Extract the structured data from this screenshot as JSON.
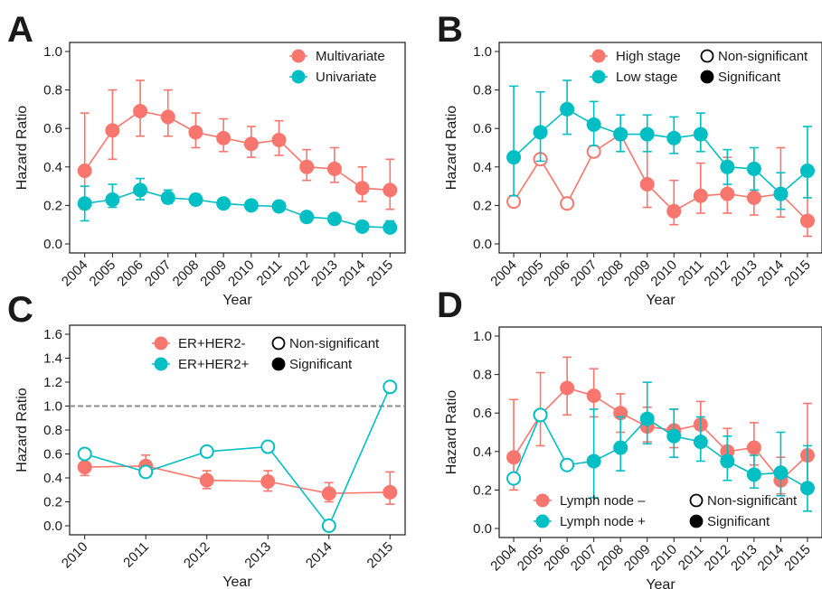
{
  "chart_data": [
    {
      "panel": "A",
      "type": "line",
      "xlabel": "Year",
      "ylabel": "Hazard Ratio",
      "ylim": [
        0.0,
        1.0
      ],
      "yticks": [
        "0.0",
        "0.2",
        "0.4",
        "0.6",
        "0.8",
        "1.0"
      ],
      "categories": [
        "2004",
        "2005",
        "2006",
        "2007",
        "2008",
        "2009",
        "2010",
        "2011",
        "2012",
        "2013",
        "2014",
        "2015"
      ],
      "legend": {
        "placement": "top-right",
        "series": [
          "Multivariate",
          "Univariate"
        ],
        "markers": []
      },
      "series": [
        {
          "name": "Multivariate",
          "color": "#F8766D",
          "values": [
            0.38,
            0.59,
            0.69,
            0.66,
            0.58,
            0.55,
            0.52,
            0.54,
            0.4,
            0.39,
            0.29,
            0.28
          ],
          "lower": [
            0.18,
            0.44,
            0.56,
            0.56,
            0.5,
            0.48,
            0.45,
            0.46,
            0.33,
            0.32,
            0.22,
            0.18
          ],
          "upper": [
            0.68,
            0.8,
            0.85,
            0.8,
            0.68,
            0.65,
            0.61,
            0.64,
            0.49,
            0.5,
            0.4,
            0.44
          ],
          "significant": [
            true,
            true,
            true,
            true,
            true,
            true,
            true,
            true,
            true,
            true,
            true,
            true
          ]
        },
        {
          "name": "Univariate",
          "color": "#00BFC4",
          "values": [
            0.21,
            0.23,
            0.28,
            0.24,
            0.23,
            0.21,
            0.2,
            0.195,
            0.14,
            0.13,
            0.09,
            0.085
          ],
          "lower": [
            0.12,
            0.19,
            0.23,
            0.21,
            0.21,
            0.19,
            0.18,
            0.175,
            0.12,
            0.11,
            0.07,
            0.06
          ],
          "upper": [
            0.3,
            0.31,
            0.34,
            0.28,
            0.26,
            0.23,
            0.22,
            0.215,
            0.16,
            0.15,
            0.11,
            0.12
          ],
          "significant": [
            true,
            true,
            true,
            true,
            true,
            true,
            true,
            true,
            true,
            true,
            true,
            true
          ]
        }
      ]
    },
    {
      "panel": "B",
      "type": "line",
      "xlabel": "Year",
      "ylabel": "Hazard Ratio",
      "ylim": [
        0.0,
        1.0
      ],
      "yticks": [
        "0.0",
        "0.2",
        "0.4",
        "0.6",
        "0.8",
        "1.0"
      ],
      "categories": [
        "2004",
        "2005",
        "2006",
        "2007",
        "2008",
        "2009",
        "2010",
        "2011",
        "2012",
        "2013",
        "2014",
        "2015"
      ],
      "legend": {
        "placement": "top-right",
        "series": [
          "High stage",
          "Low stage"
        ],
        "markers": [
          "Non-significant",
          "Significant"
        ]
      },
      "series": [
        {
          "name": "High stage",
          "color": "#F8766D",
          "values": [
            0.22,
            0.44,
            0.21,
            0.48,
            0.57,
            0.31,
            0.17,
            0.25,
            0.26,
            0.24,
            0.26,
            0.12
          ],
          "lower": [
            null,
            null,
            null,
            null,
            null,
            0.19,
            0.1,
            0.16,
            0.16,
            0.15,
            0.14,
            0.04
          ],
          "upper": [
            null,
            null,
            null,
            null,
            null,
            0.55,
            0.33,
            0.42,
            0.45,
            0.41,
            0.5,
            0.37
          ],
          "significant": [
            false,
            false,
            false,
            false,
            false,
            true,
            true,
            true,
            true,
            true,
            true,
            true
          ]
        },
        {
          "name": "Low stage",
          "color": "#00BFC4",
          "values": [
            0.45,
            0.58,
            0.7,
            0.62,
            0.57,
            0.57,
            0.55,
            0.57,
            0.4,
            0.39,
            0.26,
            0.38
          ],
          "lower": [
            0.25,
            0.43,
            0.57,
            0.51,
            0.48,
            0.48,
            0.47,
            0.48,
            0.31,
            0.28,
            0.18,
            0.24
          ],
          "upper": [
            0.82,
            0.79,
            0.85,
            0.74,
            0.67,
            0.67,
            0.66,
            0.68,
            0.49,
            0.5,
            0.37,
            0.61
          ],
          "significant": [
            true,
            true,
            true,
            true,
            true,
            true,
            true,
            true,
            true,
            true,
            true,
            true
          ]
        }
      ]
    },
    {
      "panel": "C",
      "type": "line",
      "xlabel": "Year",
      "ylabel": "Hazard Ratio",
      "ylim": [
        0.0,
        1.6
      ],
      "yticks": [
        "0.0",
        "0.2",
        "0.4",
        "0.6",
        "0.8",
        "1.0",
        "1.2",
        "1.4",
        "1.6"
      ],
      "reference_line": 1.0,
      "categories": [
        "2010",
        "2011",
        "2012",
        "2013",
        "2014",
        "2015"
      ],
      "legend": {
        "placement": "top-right",
        "series": [
          "ER+HER2-",
          "ER+HER2+"
        ],
        "markers": [
          "Non-significant",
          "Significant"
        ]
      },
      "series": [
        {
          "name": "ER+HER2-",
          "color": "#F8766D",
          "values": [
            0.49,
            0.5,
            0.38,
            0.37,
            0.27,
            0.28
          ],
          "lower": [
            0.42,
            0.42,
            0.31,
            0.29,
            0.2,
            0.18
          ],
          "upper": [
            0.58,
            0.59,
            0.46,
            0.46,
            0.36,
            0.45
          ],
          "significant": [
            true,
            true,
            true,
            true,
            true,
            true
          ]
        },
        {
          "name": "ER+HER2+",
          "color": "#00BFC4",
          "values": [
            0.6,
            0.45,
            0.62,
            0.66,
            0.0,
            1.16
          ],
          "lower": [
            null,
            null,
            null,
            null,
            null,
            null
          ],
          "upper": [
            null,
            null,
            null,
            null,
            null,
            null
          ],
          "significant": [
            false,
            false,
            false,
            false,
            false,
            false
          ]
        }
      ]
    },
    {
      "panel": "D",
      "type": "line",
      "xlabel": "Year",
      "ylabel": "Hazard Ratio",
      "ylim": [
        0.0,
        1.0
      ],
      "yticks": [
        "0.0",
        "0.2",
        "0.4",
        "0.6",
        "0.8",
        "1.0"
      ],
      "categories": [
        "2004",
        "2005",
        "2006",
        "2007",
        "2008",
        "2009",
        "2010",
        "2011",
        "2012",
        "2013",
        "2014",
        "2015"
      ],
      "legend": {
        "placement": "bottom-center",
        "series": [
          "Lymph node –",
          "Lymph node +"
        ],
        "markers": [
          "Non-significant",
          "Significant"
        ]
      },
      "series": [
        {
          "name": "Lymph node –",
          "color": "#F8766D",
          "values": [
            0.37,
            0.59,
            0.73,
            0.69,
            0.6,
            0.53,
            0.51,
            0.54,
            0.4,
            0.42,
            0.25,
            0.38
          ],
          "lower": [
            0.2,
            0.43,
            0.59,
            0.58,
            0.5,
            0.45,
            0.42,
            0.45,
            0.32,
            0.33,
            0.18,
            0.22
          ],
          "upper": [
            0.67,
            0.81,
            0.89,
            0.83,
            0.7,
            0.63,
            0.62,
            0.66,
            0.52,
            0.55,
            0.37,
            0.65
          ],
          "significant": [
            true,
            true,
            true,
            true,
            true,
            true,
            true,
            true,
            true,
            true,
            true,
            true
          ]
        },
        {
          "name": "Lymph node +",
          "color": "#00BFC4",
          "values": [
            0.26,
            0.59,
            0.33,
            0.35,
            0.42,
            0.57,
            0.48,
            0.45,
            0.35,
            0.28,
            0.29,
            0.21
          ],
          "lower": [
            null,
            null,
            null,
            0.16,
            0.3,
            0.44,
            0.37,
            0.35,
            0.25,
            0.21,
            0.17,
            0.09
          ],
          "upper": [
            null,
            null,
            null,
            0.62,
            0.58,
            0.76,
            0.62,
            0.58,
            0.48,
            0.38,
            0.5,
            0.43
          ],
          "significant": [
            false,
            false,
            false,
            true,
            true,
            true,
            true,
            true,
            true,
            true,
            true,
            true
          ]
        }
      ]
    }
  ]
}
